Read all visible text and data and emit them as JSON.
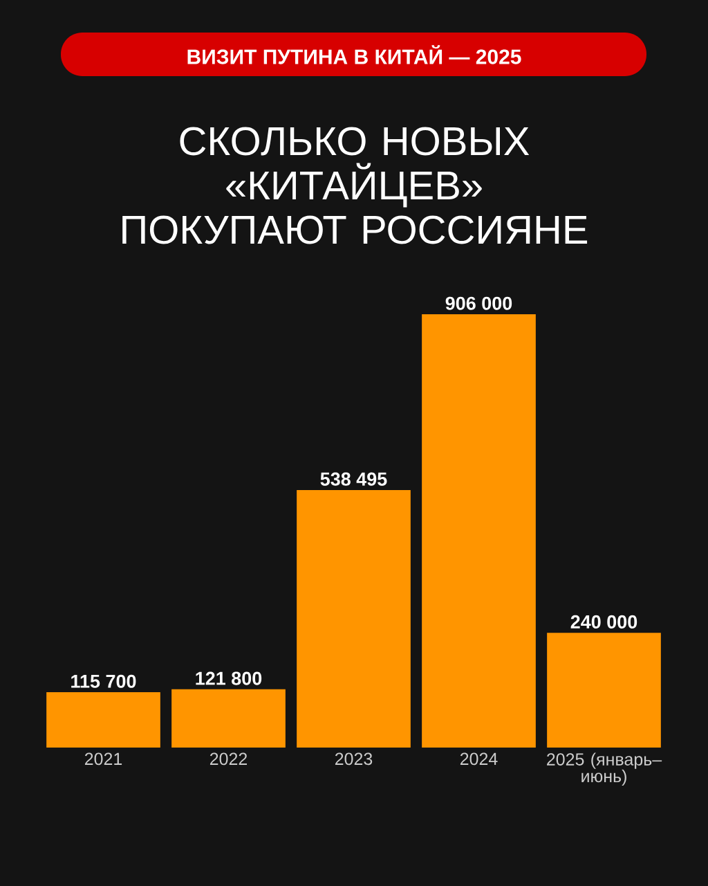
{
  "chart_data": {
    "type": "bar",
    "subtitle": "ВИЗИТ ПУТИНА В КИТАЙ — 2025",
    "title": "СКОЛЬКО НОВЫХ «КИТАЙЦЕВ» ПОКУПАЮТ РОССИЯНЕ",
    "categories": [
      "2021",
      "2022",
      "2023",
      "2024",
      "2025 (январь–июнь)"
    ],
    "values": [
      115700,
      121800,
      538495,
      906000,
      240000
    ],
    "value_labels": [
      "115 700",
      "121 800",
      "538 495",
      "906 000",
      "240 000"
    ],
    "color": "#ff9500"
  }
}
